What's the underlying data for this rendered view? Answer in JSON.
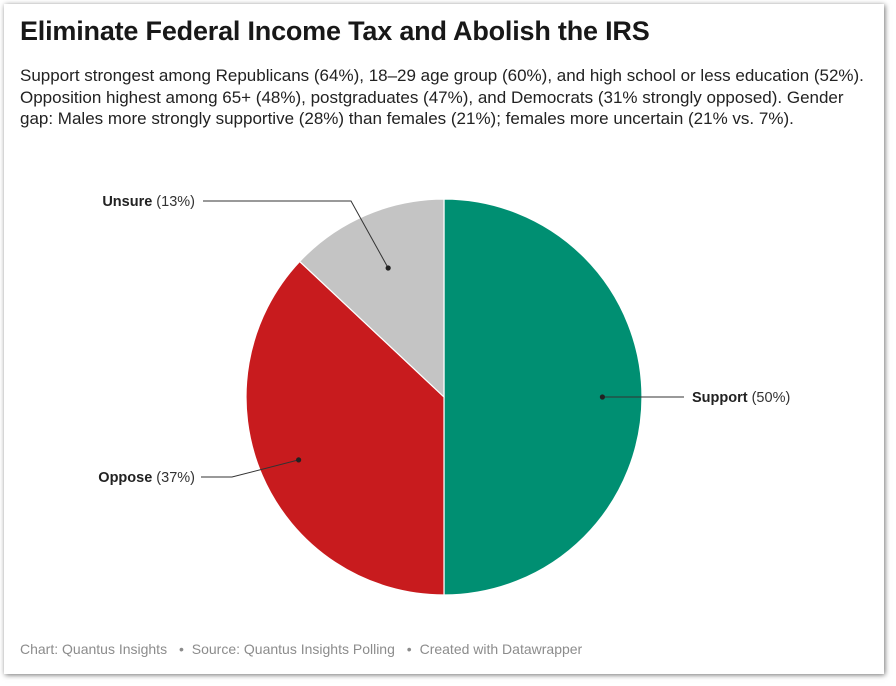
{
  "title": "Eliminate Federal Income Tax and Abolish the IRS",
  "description": "Support strongest among Republicans (64%), 18–29 age group (60%), and high school or less education (52%). Opposition highest among 65+ (48%), postgraduates (47%), and Democrats (31% strongly opposed). Gender gap: Males more strongly supportive (28%) than females (21%); females more uncertain (21% vs. 7%).",
  "footer": {
    "chart_credit": "Chart: Quantus Insights",
    "source": "Source: Quantus Insights Polling",
    "created_with": "Created with Datawrapper",
    "separator": "•"
  },
  "chart_data": {
    "type": "pie",
    "title": "Eliminate Federal Income Tax and Abolish the IRS",
    "slices": [
      {
        "label": "Support",
        "value": 50,
        "display": "(50%)",
        "color": "#008f72"
      },
      {
        "label": "Oppose",
        "value": 37,
        "display": "(37%)",
        "color": "#c81b1e"
      },
      {
        "label": "Unsure",
        "value": 13,
        "display": "(13%)",
        "color": "#c4c4c4"
      }
    ],
    "start_angle": "12 o'clock, clockwise",
    "legend": "none (direct labels)"
  }
}
